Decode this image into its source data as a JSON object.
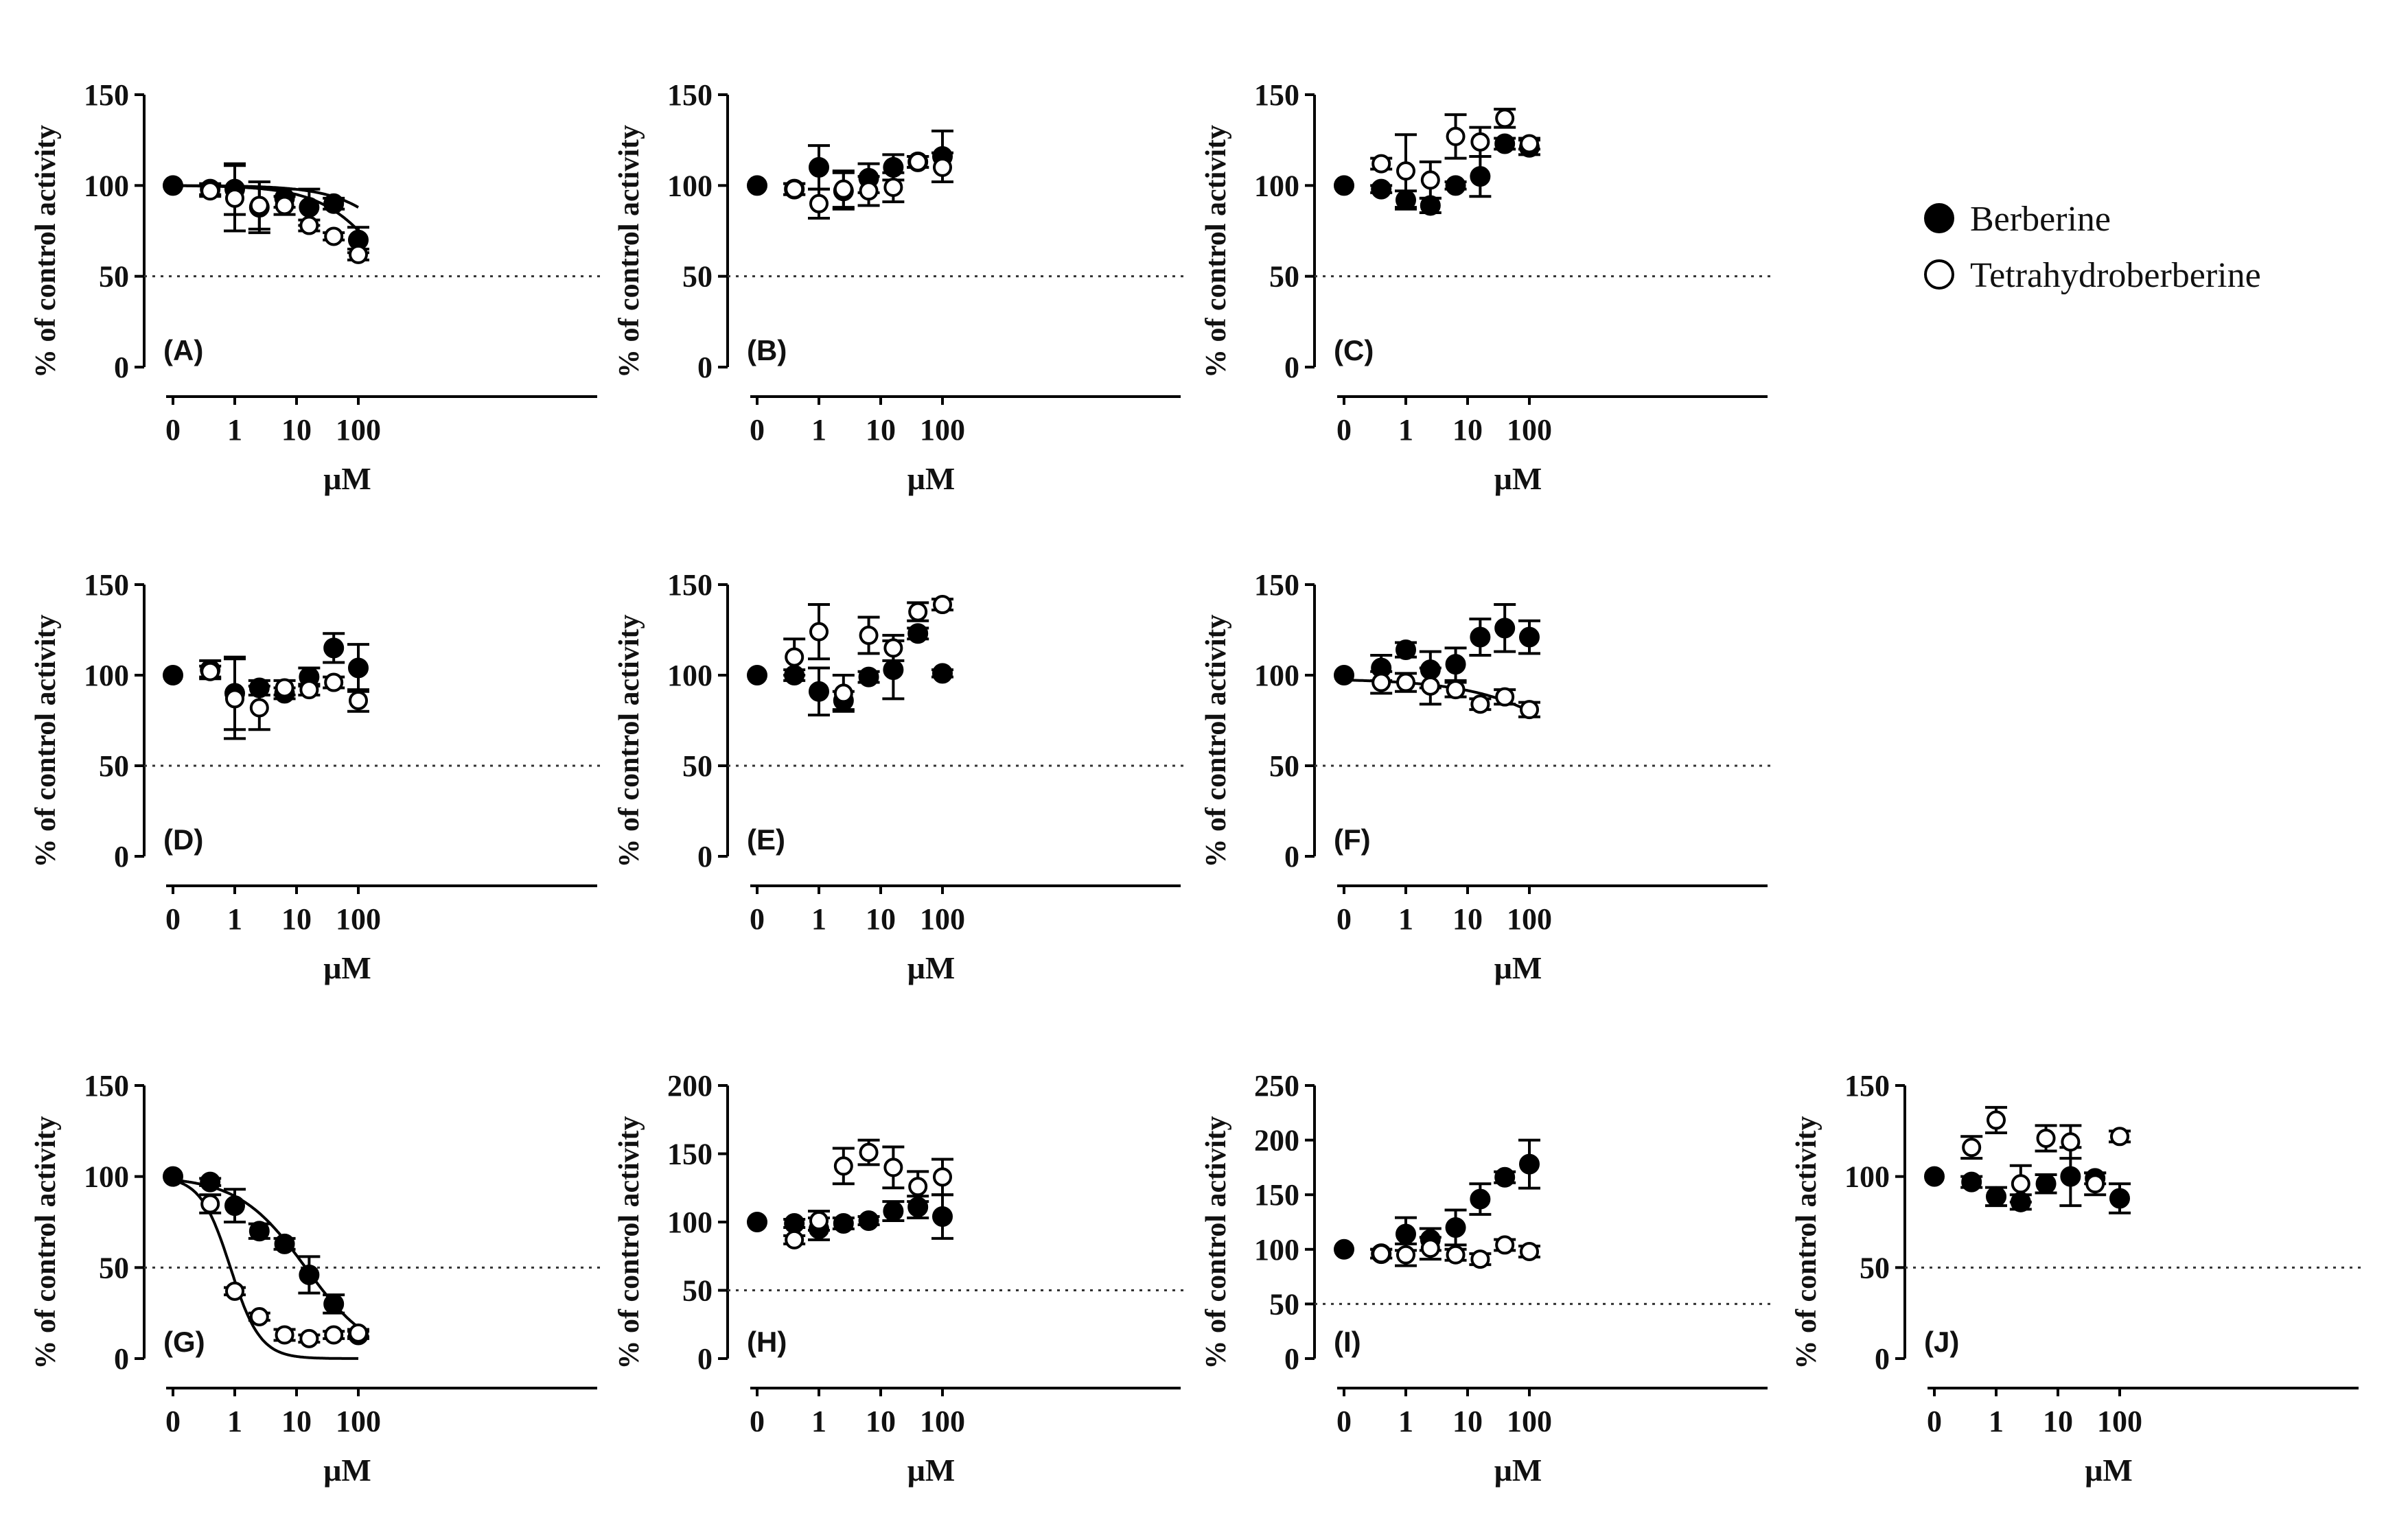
{
  "colors": {
    "ink": "#000000",
    "background": "#ffffff"
  },
  "legend": {
    "placement": "top-right",
    "items": [
      {
        "name": "Berberine",
        "marker": "filled-circle"
      },
      {
        "name": "Tetrahydroberberine",
        "marker": "open-circle"
      }
    ]
  },
  "chart_data": [
    {
      "panel": "(A)",
      "type": "scatter",
      "xlabel": "μM",
      "ylabel": "% of control activity",
      "yticks": [
        "0",
        "50",
        "100",
        "150"
      ],
      "ylim": [
        0,
        150
      ],
      "xticks": [
        "0",
        "1",
        "10",
        "100"
      ],
      "reference_line": 50,
      "series": [
        {
          "name": "Berberine",
          "x": [
            0,
            0.4,
            1,
            2.5,
            6.4,
            16,
            40,
            100
          ],
          "y": [
            100,
            98,
            98,
            88,
            93,
            88,
            90,
            70
          ],
          "err": [
            0,
            3,
            14,
            14,
            5,
            10,
            3,
            7
          ],
          "fit": {
            "top": 100,
            "bottom": 0,
            "ic50": 1200,
            "hill": 0.8
          }
        },
        {
          "name": "Tetrahydroberberine",
          "x": [
            0.4,
            1,
            2.5,
            6.4,
            16,
            40,
            100
          ],
          "y": [
            97,
            93,
            89,
            89,
            78,
            72,
            62
          ],
          "err": [
            3,
            18,
            13,
            5,
            3,
            2,
            3
          ],
          "fit": {
            "top": 100,
            "bottom": 0,
            "ic50": 400,
            "hill": 0.8
          }
        }
      ]
    },
    {
      "panel": "(B)",
      "type": "scatter",
      "xlabel": "μM",
      "ylabel": "% of control activity",
      "yticks": [
        "0",
        "50",
        "100",
        "150"
      ],
      "ylim": [
        0,
        150
      ],
      "xticks": [
        "0",
        "1",
        "10",
        "100"
      ],
      "reference_line": 50,
      "series": [
        {
          "name": "Berberine",
          "x": [
            0,
            0.4,
            1,
            2.5,
            6.4,
            16,
            40,
            100
          ],
          "y": [
            100,
            98,
            110,
            97,
            104,
            110,
            113,
            116
          ],
          "err": [
            0,
            3,
            12,
            10,
            8,
            7,
            3,
            14
          ]
        },
        {
          "name": "Tetrahydroberberine",
          "x": [
            0.4,
            1,
            2.5,
            6.4,
            16,
            40,
            100
          ],
          "y": [
            98,
            90,
            98,
            97,
            99,
            113,
            110
          ],
          "err": [
            3,
            8,
            10,
            8,
            8,
            3,
            8
          ]
        }
      ]
    },
    {
      "panel": "(C)",
      "type": "scatter",
      "xlabel": "μM",
      "ylabel": "% of control activity",
      "yticks": [
        "0",
        "50",
        "100",
        "150"
      ],
      "ylim": [
        0,
        150
      ],
      "xticks": [
        "0",
        "1",
        "10",
        "100"
      ],
      "reference_line": 50,
      "series": [
        {
          "name": "Berberine",
          "x": [
            0,
            0.4,
            1,
            2.5,
            6.4,
            16,
            40,
            100
          ],
          "y": [
            100,
            98,
            92,
            89,
            100,
            105,
            123,
            121
          ],
          "err": [
            0,
            2,
            5,
            4,
            2,
            11,
            3,
            4
          ]
        },
        {
          "name": "Tetrahydroberberine",
          "x": [
            0.4,
            1,
            2.5,
            6.4,
            16,
            40,
            100
          ],
          "y": [
            112,
            108,
            103,
            127,
            124,
            137,
            123
          ],
          "err": [
            3,
            20,
            10,
            12,
            8,
            5,
            3
          ]
        }
      ]
    },
    {
      "panel": "(D)",
      "type": "scatter",
      "xlabel": "μM",
      "ylabel": "% of control activity",
      "yticks": [
        "0",
        "50",
        "100",
        "150"
      ],
      "ylim": [
        0,
        150
      ],
      "xticks": [
        "0",
        "1",
        "10",
        "100"
      ],
      "reference_line": 50,
      "series": [
        {
          "name": "Berberine",
          "x": [
            0,
            0.4,
            1,
            2.5,
            6.4,
            16,
            40,
            100
          ],
          "y": [
            100,
            103,
            90,
            93,
            90,
            99,
            115,
            104
          ],
          "err": [
            0,
            5,
            20,
            4,
            3,
            5,
            8,
            13
          ]
        },
        {
          "name": "Tetrahydroberberine",
          "x": [
            0.4,
            1,
            2.5,
            6.4,
            16,
            40,
            100
          ],
          "y": [
            102,
            87,
            82,
            93,
            92,
            96,
            86
          ],
          "err": [
            3,
            22,
            12,
            4,
            3,
            3,
            6
          ]
        }
      ]
    },
    {
      "panel": "(E)",
      "type": "scatter",
      "xlabel": "μM",
      "ylabel": "% of control activity",
      "yticks": [
        "0",
        "50",
        "100",
        "150"
      ],
      "ylim": [
        0,
        150
      ],
      "xticks": [
        "0",
        "1",
        "10",
        "100"
      ],
      "reference_line": 50,
      "series": [
        {
          "name": "Berberine",
          "x": [
            0,
            0.4,
            1,
            2.5,
            6.4,
            16,
            40,
            100
          ],
          "y": [
            100,
            100,
            91,
            86,
            99,
            103,
            123,
            101
          ],
          "err": [
            0,
            3,
            13,
            5,
            3,
            16,
            3,
            2
          ]
        },
        {
          "name": "Tetrahydroberberine",
          "x": [
            0.4,
            1,
            2.5,
            6.4,
            16,
            40,
            100
          ],
          "y": [
            110,
            124,
            90,
            122,
            115,
            135,
            139
          ],
          "err": [
            10,
            15,
            10,
            10,
            7,
            5,
            3
          ]
        }
      ]
    },
    {
      "panel": "(F)",
      "type": "scatter",
      "xlabel": "μM",
      "ylabel": "% of control activity",
      "yticks": [
        "0",
        "50",
        "100",
        "150"
      ],
      "ylim": [
        0,
        150
      ],
      "xticks": [
        "0",
        "1",
        "10",
        "100"
      ],
      "reference_line": 50,
      "series": [
        {
          "name": "Berberine",
          "x": [
            0,
            0.4,
            1,
            2.5,
            6.4,
            16,
            40,
            100
          ],
          "y": [
            100,
            104,
            114,
            103,
            106,
            121,
            126,
            121
          ],
          "err": [
            0,
            7,
            4,
            10,
            9,
            10,
            13,
            9
          ]
        },
        {
          "name": "Tetrahydroberberine",
          "x": [
            0.4,
            1,
            2.5,
            6.4,
            16,
            40,
            100
          ],
          "y": [
            96,
            96,
            94,
            92,
            84,
            88,
            81
          ],
          "err": [
            6,
            5,
            10,
            4,
            3,
            4,
            4
          ],
          "fit": {
            "top": 98,
            "bottom": 0,
            "ic50": 2000,
            "hill": 0.5
          }
        }
      ]
    },
    {
      "panel": "(G)",
      "type": "scatter",
      "xlabel": "μM",
      "ylabel": "% of control activity",
      "yticks": [
        "0",
        "50",
        "100",
        "150"
      ],
      "ylim": [
        0,
        150
      ],
      "xticks": [
        "0",
        "1",
        "10",
        "100"
      ],
      "reference_line": 50,
      "series": [
        {
          "name": "Berberine",
          "x": [
            0,
            0.4,
            1,
            2.5,
            6.4,
            16,
            40,
            100
          ],
          "y": [
            100,
            97,
            84,
            70,
            63,
            46,
            30,
            13
          ],
          "err": [
            0,
            2,
            9,
            4,
            3,
            10,
            5,
            2
          ],
          "fit": {
            "top": 100,
            "bottom": 0,
            "ic50": 14,
            "hill": 0.8
          }
        },
        {
          "name": "Tetrahydroberberine",
          "x": [
            0.4,
            1,
            2.5,
            6.4,
            16,
            40,
            100
          ],
          "y": [
            85,
            37,
            23,
            13,
            11,
            13,
            14
          ],
          "err": [
            5,
            2,
            2,
            3,
            2,
            2,
            2
          ],
          "fit": {
            "top": 100,
            "bottom": 0,
            "ic50": 0.85,
            "hill": 1.8
          }
        }
      ]
    },
    {
      "panel": "(H)",
      "type": "scatter",
      "xlabel": "μM",
      "ylabel": "% of control activity",
      "yticks": [
        "0",
        "50",
        "100",
        "150",
        "200"
      ],
      "ylim": [
        0,
        200
      ],
      "xticks": [
        "0",
        "1",
        "10",
        "100"
      ],
      "reference_line": 50,
      "series": [
        {
          "name": "Berberine",
          "x": [
            0,
            0.4,
            1,
            2.5,
            6.4,
            16,
            40,
            100
          ],
          "y": [
            100,
            99,
            95,
            99,
            101,
            108,
            111,
            104
          ],
          "err": [
            0,
            3,
            8,
            4,
            3,
            7,
            8,
            16
          ]
        },
        {
          "name": "Tetrahydroberberine",
          "x": [
            0.4,
            1,
            2.5,
            6.4,
            16,
            40,
            100
          ],
          "y": [
            87,
            101,
            141,
            151,
            140,
            126,
            133
          ],
          "err": [
            3,
            7,
            13,
            9,
            15,
            11,
            13
          ]
        }
      ]
    },
    {
      "panel": "(I)",
      "type": "scatter",
      "xlabel": "μM",
      "ylabel": "% of control activity",
      "yticks": [
        "0",
        "50",
        "100",
        "150",
        "200",
        "250"
      ],
      "ylim": [
        0,
        250
      ],
      "xticks": [
        "0",
        "1",
        "10",
        "100"
      ],
      "reference_line": 50,
      "series": [
        {
          "name": "Berberine",
          "x": [
            0,
            0.4,
            1,
            2.5,
            6.4,
            16,
            40,
            100
          ],
          "y": [
            100,
            96,
            114,
            109,
            120,
            146,
            166,
            178
          ],
          "err": [
            0,
            4,
            15,
            10,
            16,
            14,
            5,
            22
          ]
        },
        {
          "name": "Tetrahydroberberine",
          "x": [
            0.4,
            1,
            2.5,
            6.4,
            16,
            40,
            100
          ],
          "y": [
            96,
            95,
            101,
            95,
            91,
            104,
            98
          ],
          "err": [
            4,
            10,
            10,
            5,
            5,
            5,
            5
          ]
        }
      ]
    },
    {
      "panel": "(J)",
      "type": "scatter",
      "xlabel": "μM",
      "ylabel": "% of control activity",
      "yticks": [
        "0",
        "50",
        "100",
        "150"
      ],
      "ylim": [
        0,
        150
      ],
      "xticks": [
        "0",
        "1",
        "10",
        "100"
      ],
      "reference_line": 50,
      "series": [
        {
          "name": "Berberine",
          "x": [
            0,
            0.4,
            1,
            2.5,
            6.4,
            16,
            40,
            100
          ],
          "y": [
            100,
            97,
            89,
            86,
            96,
            100,
            99,
            88
          ],
          "err": [
            0,
            3,
            5,
            4,
            5,
            16,
            3,
            8
          ]
        },
        {
          "name": "Tetrahydroberberine",
          "x": [
            0.4,
            1,
            2.5,
            6.4,
            16,
            40,
            100
          ],
          "y": [
            116,
            131,
            96,
            121,
            119,
            96,
            122
          ],
          "err": [
            6,
            7,
            10,
            7,
            9,
            6,
            3
          ]
        }
      ]
    }
  ]
}
